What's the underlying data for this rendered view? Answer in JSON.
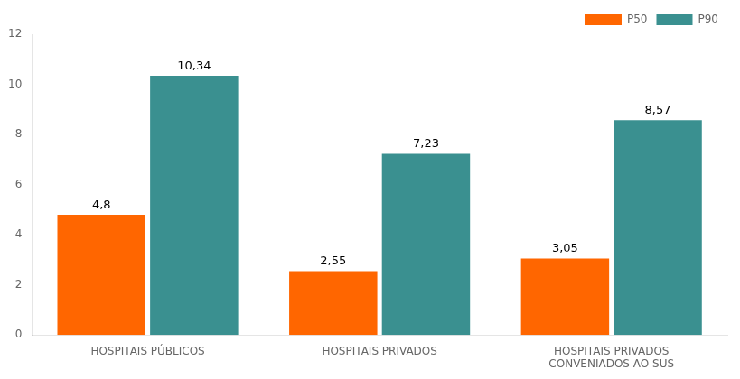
{
  "chart_data": {
    "type": "bar",
    "categories": [
      "HOSPITAIS PÚBLICOS",
      "HOSPITAIS PRIVADOS",
      "HOSPITAIS PRIVADOS\nCONVENIADOS AO SUS"
    ],
    "series": [
      {
        "name": "P50",
        "color": "#FF6600",
        "values": [
          4.8,
          2.55,
          3.05
        ],
        "value_labels": [
          "4,8",
          "2,55",
          "3,05"
        ]
      },
      {
        "name": "P90",
        "color": "#3A9090",
        "values": [
          10.34,
          7.23,
          8.57
        ],
        "value_labels": [
          "10,34",
          "7,23",
          "8,57"
        ]
      }
    ],
    "ylim": [
      0,
      12
    ],
    "yticks": [
      0,
      2,
      4,
      6,
      8,
      10,
      12
    ],
    "grid": false,
    "legend": "upper right",
    "data_labels": true
  }
}
